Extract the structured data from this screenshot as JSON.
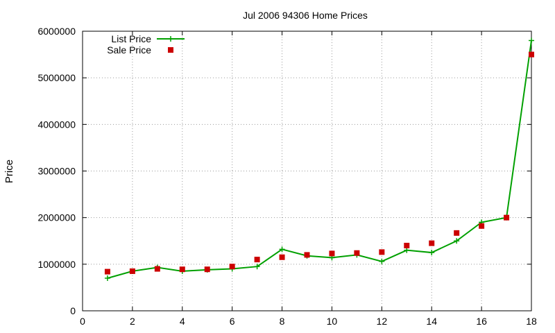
{
  "chart_data": {
    "type": "line",
    "title": "Jul 2006 94306 Home Prices",
    "xlabel": "",
    "ylabel": "Price",
    "xlim": [
      0,
      18
    ],
    "ylim": [
      0,
      6000000
    ],
    "x_ticks": [
      0,
      2,
      4,
      6,
      8,
      10,
      12,
      14,
      16,
      18
    ],
    "y_ticks": [
      0,
      1000000,
      2000000,
      3000000,
      4000000,
      5000000,
      6000000
    ],
    "grid": true,
    "legend_position": "top-left",
    "series": [
      {
        "name": "List Price",
        "style": "line-with-plus-markers",
        "color": "#00a000",
        "x": [
          1,
          2,
          3,
          4,
          5,
          6,
          7,
          8,
          9,
          10,
          11,
          12,
          13,
          14,
          15,
          16,
          17,
          18
        ],
        "values": [
          700000,
          850000,
          930000,
          850000,
          880000,
          900000,
          950000,
          1320000,
          1180000,
          1140000,
          1200000,
          1060000,
          1300000,
          1250000,
          1500000,
          1900000,
          2000000,
          5800000
        ]
      },
      {
        "name": "Sale Price",
        "style": "square-markers",
        "color": "#cc0000",
        "x": [
          1,
          2,
          3,
          4,
          5,
          6,
          7,
          8,
          9,
          10,
          11,
          12,
          13,
          14,
          15,
          16,
          17,
          18
        ],
        "values": [
          840000,
          850000,
          900000,
          890000,
          890000,
          950000,
          1100000,
          1150000,
          1200000,
          1230000,
          1240000,
          1260000,
          1400000,
          1450000,
          1670000,
          1820000,
          2000000,
          5500000
        ]
      }
    ]
  }
}
